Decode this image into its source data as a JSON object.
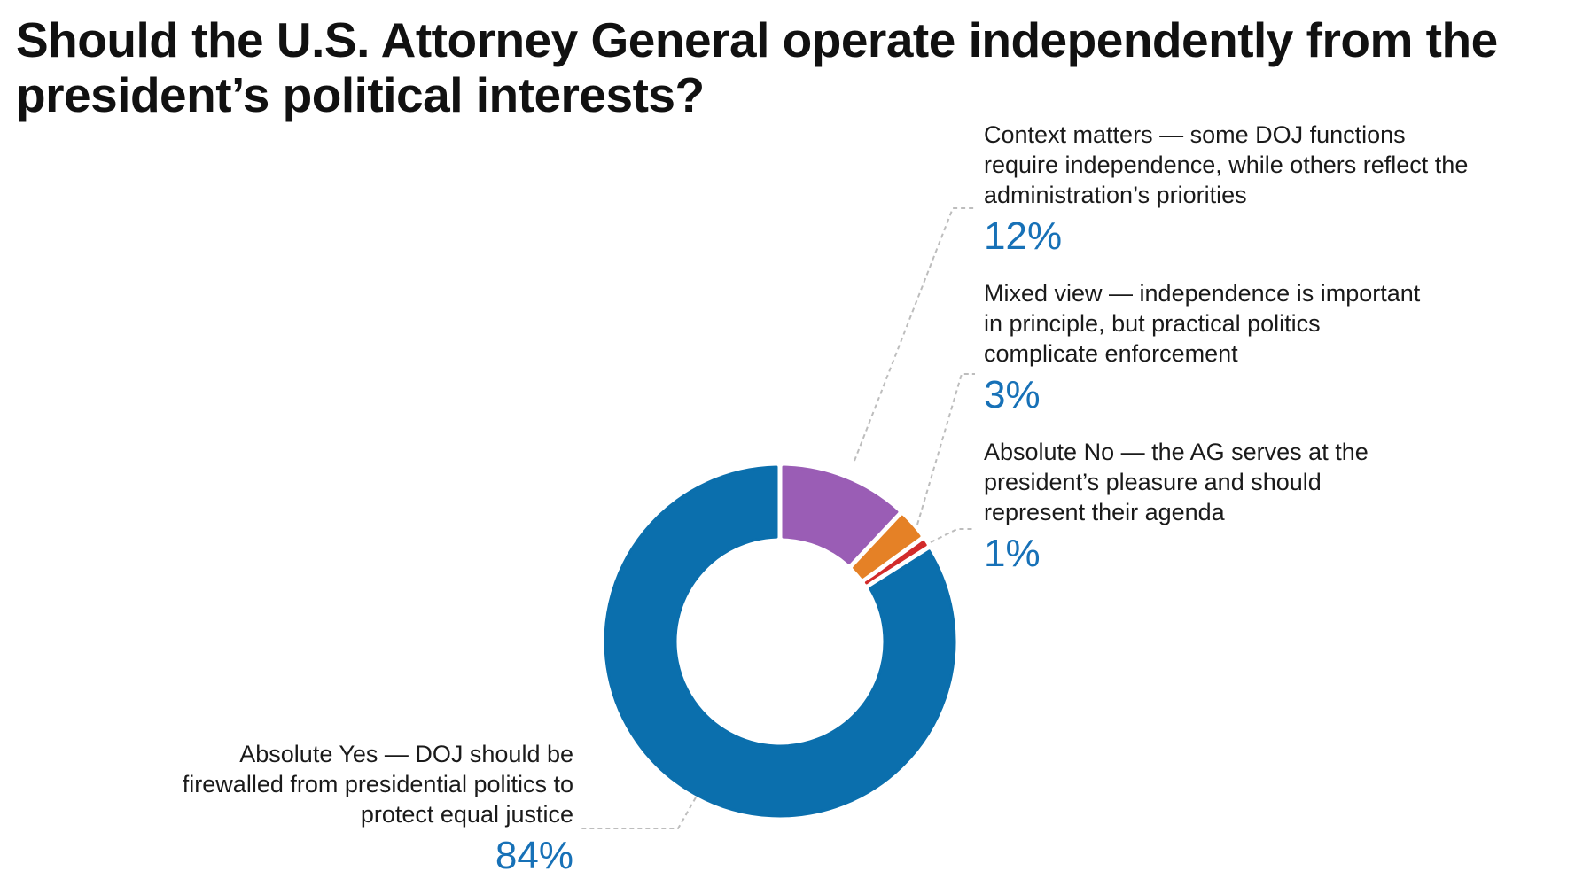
{
  "chart_data": {
    "type": "pie",
    "style": "donut",
    "title": "Should the U.S. Attorney General operate independently from the president’s political interests?",
    "slices": [
      {
        "label": "Absolute Yes — DOJ should be firewalled from presidential politics to protect equal justice",
        "value": 84,
        "display": "84%",
        "color": "#0b6fad"
      },
      {
        "label": "Context matters — some DOJ functions require independence, while others reflect the administration’s priorities",
        "value": 12,
        "display": "12%",
        "color": "#9a5db5"
      },
      {
        "label": "Mixed view — independence is important in principle, but practical politics complicate enforcement",
        "value": 3,
        "display": "3%",
        "color": "#e58126"
      },
      {
        "label": "Absolute No — the AG serves at the president’s pleasure and should represent their agenda",
        "value": 1,
        "display": "1%",
        "color": "#d22b2b"
      }
    ]
  }
}
